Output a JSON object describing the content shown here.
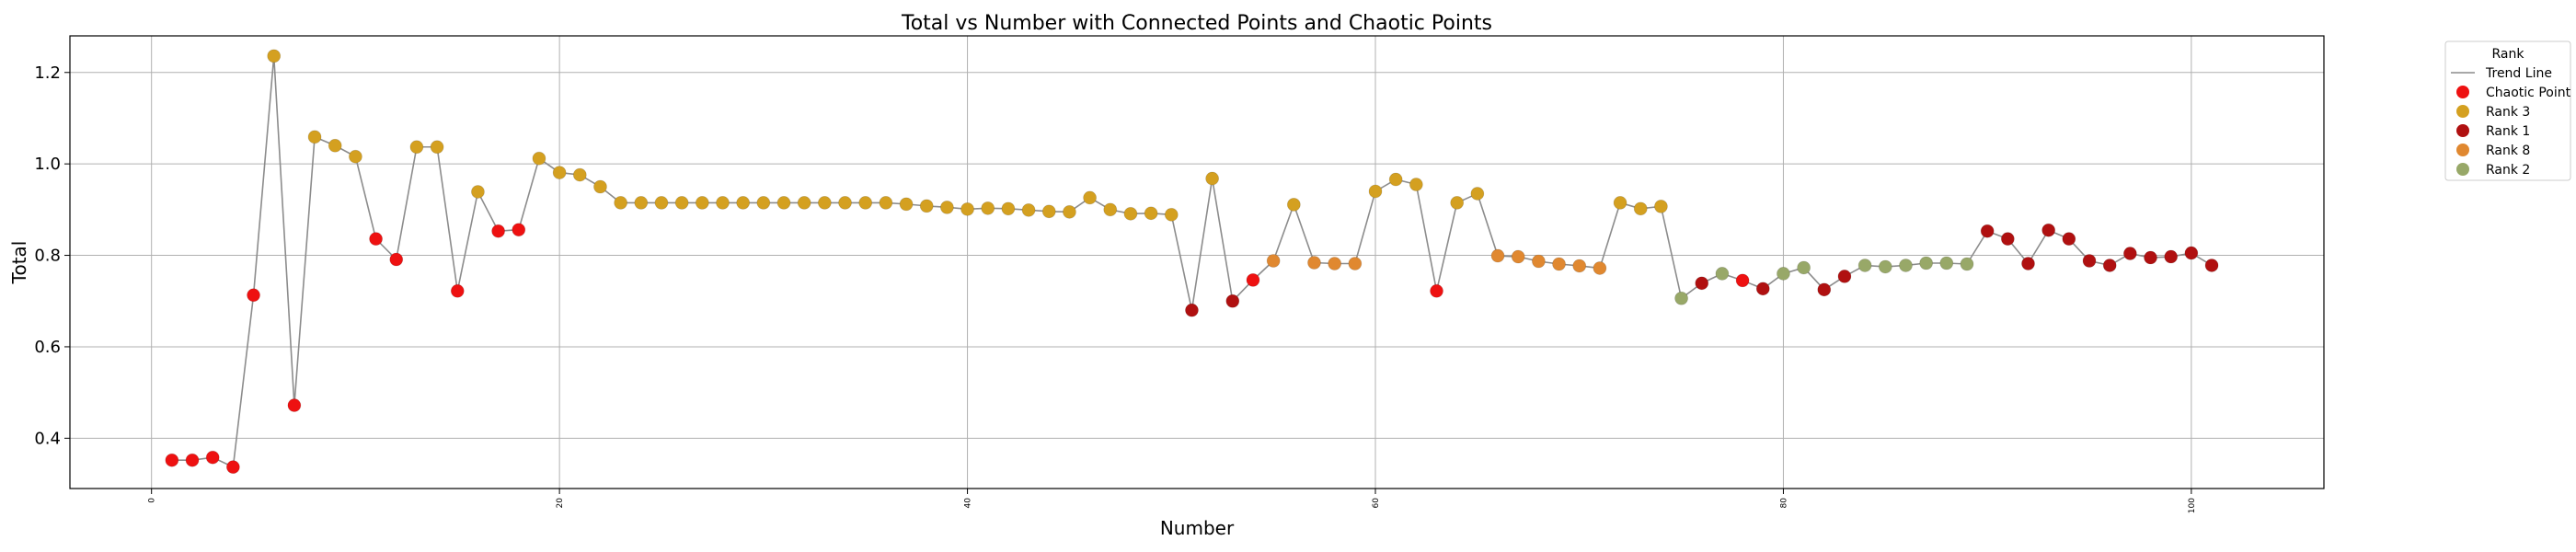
{
  "chart_data": {
    "type": "scatter",
    "title": "Total vs Number with Connected Points and Chaotic Points",
    "xlabel": "Number",
    "ylabel": "Total",
    "xlim": [
      -4,
      106.5
    ],
    "ylim": [
      0.29,
      1.28
    ],
    "xticks": [
      0,
      20,
      40,
      60,
      80,
      100
    ],
    "yticks": [
      0.4,
      0.6,
      0.8,
      1.0,
      1.2
    ],
    "xtick_labels": [
      "0",
      "20",
      "40",
      "60",
      "80",
      "100"
    ],
    "ytick_labels": [
      "0.4",
      "0.6",
      "0.8",
      "1.0",
      "1.2"
    ],
    "grid": true,
    "legend": {
      "title": "Rank",
      "placement": "outside-top-right",
      "entries": [
        {
          "label": "Trend Line",
          "kind": "line",
          "color": "#8c8c8c"
        },
        {
          "label": "Chaotic Point",
          "kind": "marker",
          "color": "#ee1111"
        },
        {
          "label": "Rank 3",
          "kind": "marker",
          "color": "#d4a020"
        },
        {
          "label": "Rank 1",
          "kind": "marker",
          "color": "#b01010"
        },
        {
          "label": "Rank 8",
          "kind": "marker",
          "color": "#e08830"
        },
        {
          "label": "Rank 2",
          "kind": "marker",
          "color": "#98a868"
        }
      ]
    },
    "colors": {
      "chaotic": "#ee1111",
      "r3": "#d4a020",
      "r1": "#b01010",
      "r8": "#e08830",
      "r2": "#98a868",
      "trend": "#8c8c8c"
    },
    "points": [
      {
        "x": 1,
        "y": 0.352,
        "g": "chaotic"
      },
      {
        "x": 2,
        "y": 0.352,
        "g": "chaotic"
      },
      {
        "x": 3,
        "y": 0.358,
        "g": "chaotic"
      },
      {
        "x": 4,
        "y": 0.337,
        "g": "chaotic"
      },
      {
        "x": 5,
        "y": 0.713,
        "g": "chaotic"
      },
      {
        "x": 6,
        "y": 1.236,
        "g": "r3"
      },
      {
        "x": 7,
        "y": 0.472,
        "g": "chaotic"
      },
      {
        "x": 8,
        "y": 1.059,
        "g": "r3"
      },
      {
        "x": 9,
        "y": 1.04,
        "g": "r3"
      },
      {
        "x": 10,
        "y": 1.016,
        "g": "r3"
      },
      {
        "x": 11,
        "y": 0.836,
        "g": "chaotic"
      },
      {
        "x": 12,
        "y": 0.791,
        "g": "chaotic"
      },
      {
        "x": 13,
        "y": 1.037,
        "g": "r3"
      },
      {
        "x": 14,
        "y": 1.037,
        "g": "r3"
      },
      {
        "x": 15,
        "y": 0.722,
        "g": "chaotic"
      },
      {
        "x": 16,
        "y": 0.939,
        "g": "r3"
      },
      {
        "x": 17,
        "y": 0.853,
        "g": "chaotic"
      },
      {
        "x": 18,
        "y": 0.856,
        "g": "chaotic"
      },
      {
        "x": 19,
        "y": 1.012,
        "g": "r3"
      },
      {
        "x": 20,
        "y": 0.981,
        "g": "r3"
      },
      {
        "x": 21,
        "y": 0.976,
        "g": "r3"
      },
      {
        "x": 22,
        "y": 0.95,
        "g": "r3"
      },
      {
        "x": 23,
        "y": 0.915,
        "g": "r3"
      },
      {
        "x": 24,
        "y": 0.915,
        "g": "r3"
      },
      {
        "x": 25,
        "y": 0.915,
        "g": "r3"
      },
      {
        "x": 26,
        "y": 0.915,
        "g": "r3"
      },
      {
        "x": 27,
        "y": 0.915,
        "g": "r3"
      },
      {
        "x": 28,
        "y": 0.915,
        "g": "r3"
      },
      {
        "x": 29,
        "y": 0.915,
        "g": "r3"
      },
      {
        "x": 30,
        "y": 0.915,
        "g": "r3"
      },
      {
        "x": 31,
        "y": 0.915,
        "g": "r3"
      },
      {
        "x": 32,
        "y": 0.915,
        "g": "r3"
      },
      {
        "x": 33,
        "y": 0.915,
        "g": "r3"
      },
      {
        "x": 34,
        "y": 0.915,
        "g": "r3"
      },
      {
        "x": 35,
        "y": 0.915,
        "g": "r3"
      },
      {
        "x": 36,
        "y": 0.915,
        "g": "r3"
      },
      {
        "x": 37,
        "y": 0.912,
        "g": "r3"
      },
      {
        "x": 38,
        "y": 0.908,
        "g": "r3"
      },
      {
        "x": 39,
        "y": 0.905,
        "g": "r3"
      },
      {
        "x": 40,
        "y": 0.901,
        "g": "r3"
      },
      {
        "x": 41,
        "y": 0.903,
        "g": "r3"
      },
      {
        "x": 42,
        "y": 0.902,
        "g": "r3"
      },
      {
        "x": 43,
        "y": 0.899,
        "g": "r3"
      },
      {
        "x": 44,
        "y": 0.896,
        "g": "r3"
      },
      {
        "x": 45,
        "y": 0.895,
        "g": "r3"
      },
      {
        "x": 46,
        "y": 0.926,
        "g": "r3"
      },
      {
        "x": 47,
        "y": 0.9,
        "g": "r3"
      },
      {
        "x": 48,
        "y": 0.891,
        "g": "r3"
      },
      {
        "x": 49,
        "y": 0.892,
        "g": "r3"
      },
      {
        "x": 50,
        "y": 0.889,
        "g": "r3"
      },
      {
        "x": 51,
        "y": 0.68,
        "g": "r1"
      },
      {
        "x": 52,
        "y": 0.968,
        "g": "r3"
      },
      {
        "x": 53,
        "y": 0.7,
        "g": "r1"
      },
      {
        "x": 54,
        "y": 0.746,
        "g": "chaotic"
      },
      {
        "x": 55,
        "y": 0.788,
        "g": "r8"
      },
      {
        "x": 56,
        "y": 0.911,
        "g": "r3"
      },
      {
        "x": 57,
        "y": 0.784,
        "g": "r8"
      },
      {
        "x": 58,
        "y": 0.782,
        "g": "r8"
      },
      {
        "x": 59,
        "y": 0.782,
        "g": "r8"
      },
      {
        "x": 60,
        "y": 0.94,
        "g": "r3"
      },
      {
        "x": 61,
        "y": 0.966,
        "g": "r3"
      },
      {
        "x": 62,
        "y": 0.955,
        "g": "r3"
      },
      {
        "x": 63,
        "y": 0.722,
        "g": "chaotic"
      },
      {
        "x": 64,
        "y": 0.915,
        "g": "r3"
      },
      {
        "x": 65,
        "y": 0.935,
        "g": "r3"
      },
      {
        "x": 66,
        "y": 0.799,
        "g": "r8"
      },
      {
        "x": 67,
        "y": 0.797,
        "g": "r8"
      },
      {
        "x": 68,
        "y": 0.787,
        "g": "r8"
      },
      {
        "x": 69,
        "y": 0.781,
        "g": "r8"
      },
      {
        "x": 70,
        "y": 0.777,
        "g": "r8"
      },
      {
        "x": 71,
        "y": 0.772,
        "g": "r8"
      },
      {
        "x": 72,
        "y": 0.915,
        "g": "r3"
      },
      {
        "x": 73,
        "y": 0.902,
        "g": "r3"
      },
      {
        "x": 74,
        "y": 0.907,
        "g": "r3"
      },
      {
        "x": 75,
        "y": 0.706,
        "g": "r2"
      },
      {
        "x": 76,
        "y": 0.739,
        "g": "r1"
      },
      {
        "x": 77,
        "y": 0.76,
        "g": "r2"
      },
      {
        "x": 78,
        "y": 0.745,
        "g": "chaotic"
      },
      {
        "x": 79,
        "y": 0.727,
        "g": "r1"
      },
      {
        "x": 80,
        "y": 0.76,
        "g": "r2"
      },
      {
        "x": 81,
        "y": 0.773,
        "g": "r2"
      },
      {
        "x": 82,
        "y": 0.725,
        "g": "r1"
      },
      {
        "x": 83,
        "y": 0.754,
        "g": "r1"
      },
      {
        "x": 84,
        "y": 0.778,
        "g": "r2"
      },
      {
        "x": 85,
        "y": 0.775,
        "g": "r2"
      },
      {
        "x": 86,
        "y": 0.778,
        "g": "r2"
      },
      {
        "x": 87,
        "y": 0.783,
        "g": "r2"
      },
      {
        "x": 88,
        "y": 0.783,
        "g": "r2"
      },
      {
        "x": 89,
        "y": 0.781,
        "g": "r2"
      },
      {
        "x": 90,
        "y": 0.853,
        "g": "r1"
      },
      {
        "x": 91,
        "y": 0.836,
        "g": "r1"
      },
      {
        "x": 92,
        "y": 0.782,
        "g": "r1"
      },
      {
        "x": 93,
        "y": 0.855,
        "g": "r1"
      },
      {
        "x": 94,
        "y": 0.836,
        "g": "r1"
      },
      {
        "x": 95,
        "y": 0.788,
        "g": "r1"
      },
      {
        "x": 96,
        "y": 0.778,
        "g": "r1"
      },
      {
        "x": 97,
        "y": 0.804,
        "g": "r1"
      },
      {
        "x": 98,
        "y": 0.795,
        "g": "r1"
      },
      {
        "x": 99,
        "y": 0.797,
        "g": "r1"
      },
      {
        "x": 100,
        "y": 0.805,
        "g": "r1"
      },
      {
        "x": 101,
        "y": 0.778,
        "g": "r1"
      }
    ]
  }
}
